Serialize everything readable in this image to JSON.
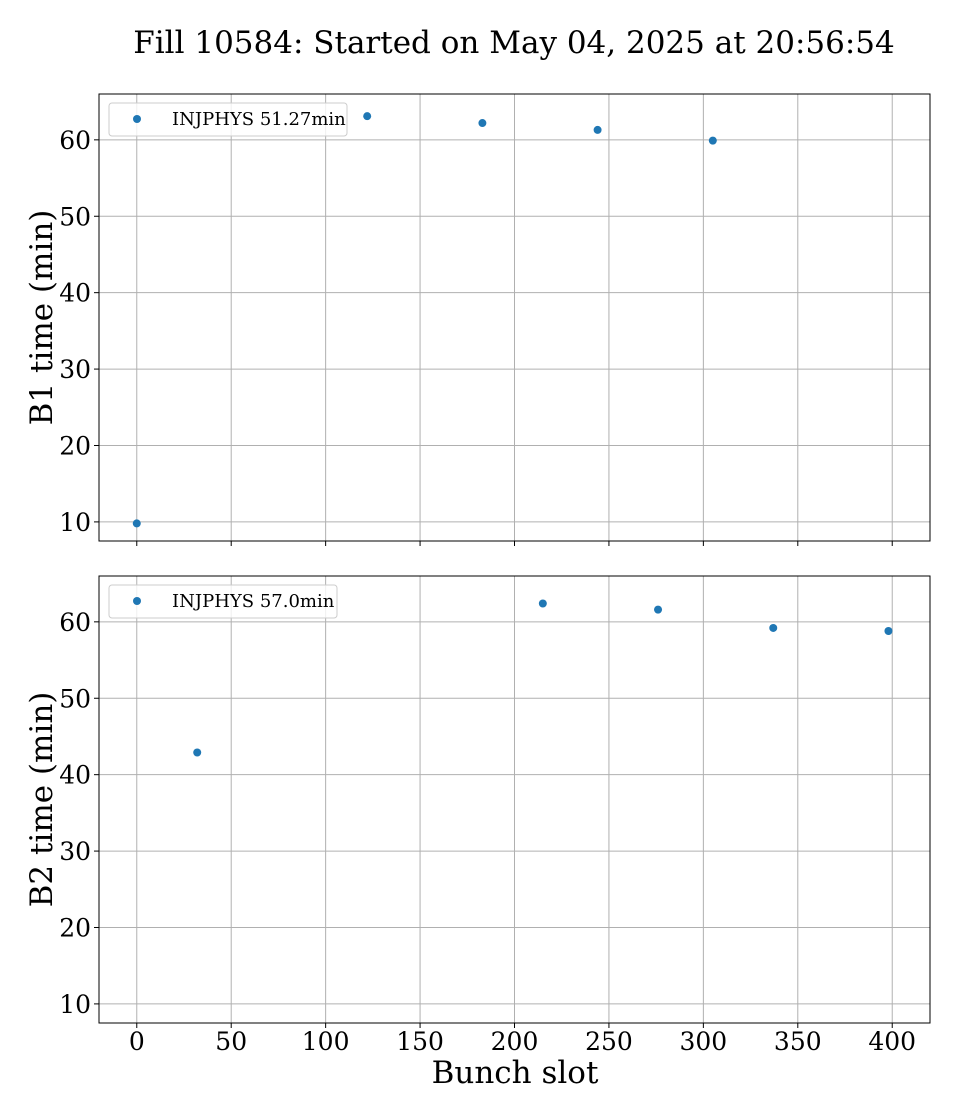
{
  "chart_data": {
    "type": "scatter",
    "title": "Fill 10584: Started on May 04, 2025 at 20:56:54",
    "color": "#1f77b4",
    "grid": true,
    "legend_position": "top-left",
    "xlabel": "Bunch slot",
    "x_ticks": [
      0,
      50,
      100,
      150,
      200,
      250,
      300,
      350,
      400
    ],
    "xlim": [
      -20,
      420
    ],
    "panels": [
      {
        "ylabel": "B1 time (min)",
        "ylim": [
          7.5,
          66
        ],
        "y_ticks": [
          10,
          20,
          30,
          40,
          50,
          60
        ],
        "series": [
          {
            "name": "INJPHYS 51.27min",
            "x": [
              0,
              122,
              183,
              244,
              305
            ],
            "y": [
              9.8,
              63.1,
              62.2,
              61.3,
              59.9
            ]
          }
        ]
      },
      {
        "ylabel": "B2 time (min)",
        "ylim": [
          7.5,
          66
        ],
        "y_ticks": [
          10,
          20,
          30,
          40,
          50,
          60
        ],
        "series": [
          {
            "name": "INJPHYS 57.0min",
            "x": [
              32,
              215,
              276,
              337,
              398
            ],
            "y": [
              42.9,
              62.4,
              61.6,
              59.2,
              58.8
            ]
          }
        ]
      }
    ]
  }
}
